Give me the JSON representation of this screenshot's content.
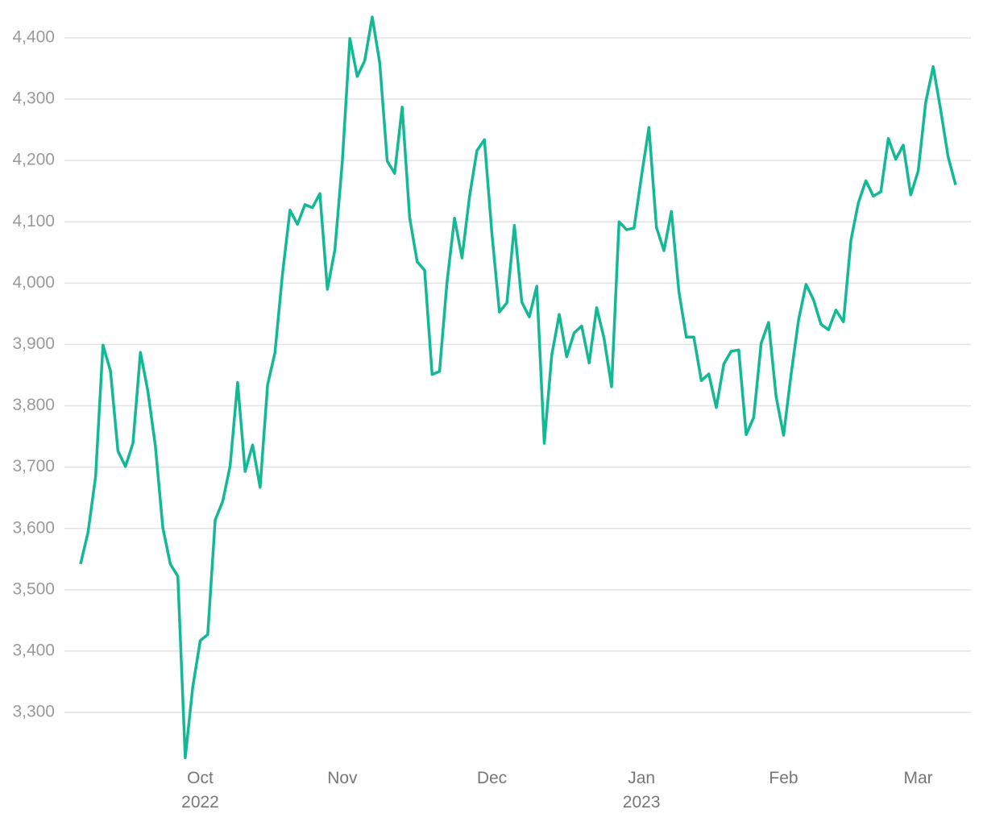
{
  "chart_data": {
    "type": "line",
    "categories": [
      null,
      null,
      null,
      null,
      null,
      null,
      null,
      null,
      null,
      null,
      null,
      null,
      null,
      null,
      null,
      null,
      "Oct 2022",
      null,
      null,
      null,
      null,
      null,
      null,
      null,
      null,
      null,
      null,
      null,
      null,
      null,
      null,
      null,
      null,
      null,
      null,
      "Nov",
      null,
      null,
      null,
      null,
      null,
      null,
      null,
      null,
      null,
      null,
      null,
      null,
      null,
      null,
      null,
      null,
      null,
      null,
      null,
      "Dec",
      null,
      null,
      null,
      null,
      null,
      null,
      null,
      null,
      null,
      null,
      null,
      null,
      null,
      null,
      null,
      null,
      null,
      null,
      null,
      "Jan 2023",
      null,
      null,
      null,
      null,
      null,
      null,
      null,
      null,
      null,
      null,
      null,
      null,
      null,
      null,
      null,
      null,
      null,
      null,
      "Feb",
      null,
      null,
      null,
      null,
      null,
      null,
      null,
      null,
      null,
      null,
      null,
      null,
      null,
      null,
      null,
      null,
      null,
      "Mar",
      null,
      null,
      null,
      null,
      null
    ],
    "series": [
      {
        "color": "#13b894",
        "values": [
          3542,
          3594,
          3684,
          3899,
          3857,
          3726,
          3701,
          3739,
          3887,
          3824,
          3735,
          3601,
          3542,
          3522,
          3226,
          3341,
          3417,
          3427,
          3614,
          3644,
          3702,
          3838,
          3693,
          3736,
          3667,
          3834,
          3887,
          4015,
          4119,
          4096,
          4128,
          4123,
          4146,
          3990,
          4054,
          4199,
          4399,
          4337,
          4363,
          4434,
          4359,
          4199,
          4179,
          4287,
          4107,
          4035,
          4021,
          3851,
          3856,
          4002,
          4106,
          4041,
          4141,
          4216,
          4234,
          4081,
          3953,
          3968,
          4094,
          3969,
          3945,
          3995,
          3739,
          3883,
          3949,
          3880,
          3919,
          3930,
          3870,
          3960,
          3910,
          3831,
          4100,
          4087,
          4090,
          4175,
          4254,
          4091,
          4053,
          4117,
          3986,
          3912,
          3912,
          3841,
          3852,
          3797,
          3868,
          3889,
          3891,
          3753,
          3781,
          3902,
          3936,
          3815,
          3752,
          3851,
          3940,
          3998,
          3973,
          3933,
          3924,
          3956,
          3937,
          4070,
          4131,
          4167,
          4142,
          4149,
          4236,
          4202,
          4225,
          4144,
          4183,
          4295,
          4353,
          4283,
          4206,
          4160
        ]
      }
    ],
    "ylim": [
      3210,
      4460
    ],
    "yticks": [
      {
        "value": 3300,
        "label": "3,300"
      },
      {
        "value": 3400,
        "label": "3,400"
      },
      {
        "value": 3500,
        "label": "3,500"
      },
      {
        "value": 3600,
        "label": "3,600"
      },
      {
        "value": 3700,
        "label": "3,700"
      },
      {
        "value": 3800,
        "label": "3,800"
      },
      {
        "value": 3900,
        "label": "3,900"
      },
      {
        "value": 4000,
        "label": "4,000"
      },
      {
        "value": 4100,
        "label": "4,100"
      },
      {
        "value": 4200,
        "label": "4,200"
      },
      {
        "value": 4300,
        "label": "4,300"
      },
      {
        "value": 4400,
        "label": "4,400"
      }
    ],
    "grid": true
  }
}
